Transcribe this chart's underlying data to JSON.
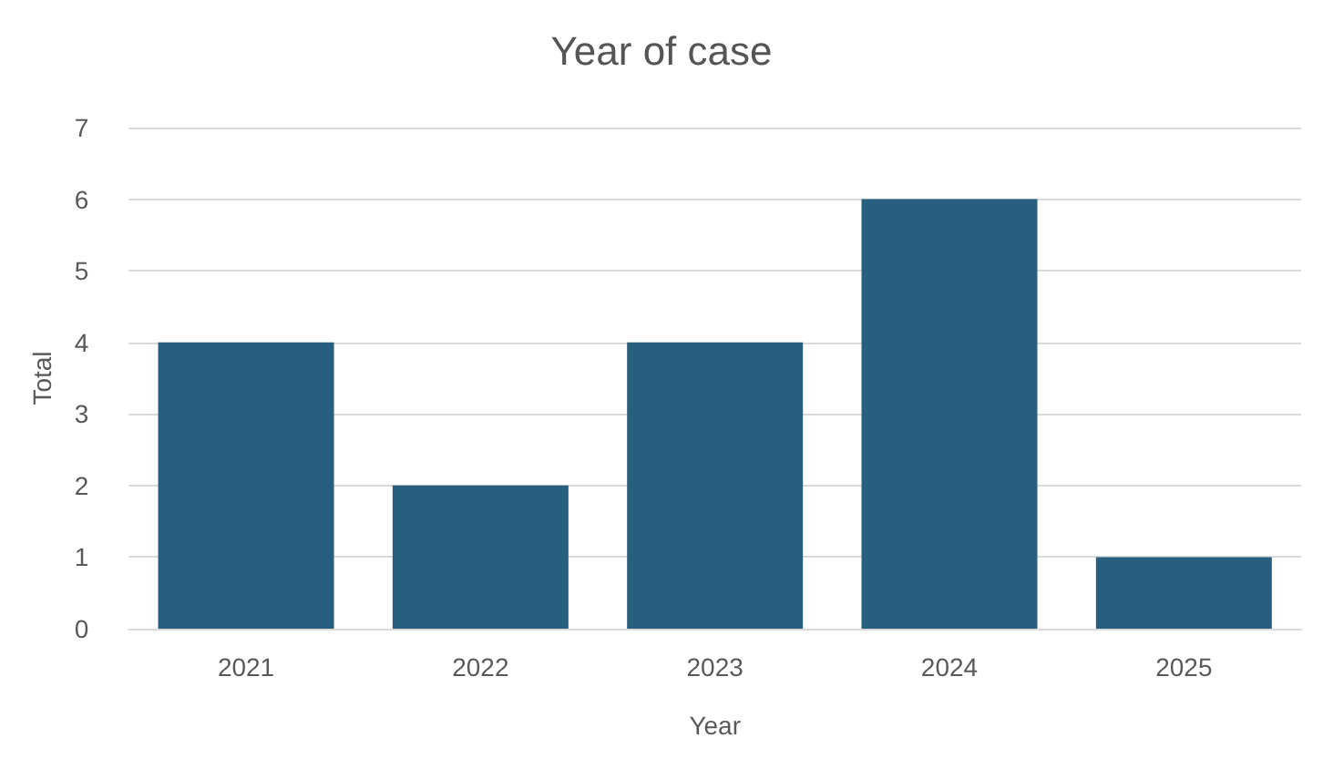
{
  "chart_data": {
    "type": "bar",
    "title": "Year of case",
    "xlabel": "Year",
    "ylabel": "Total",
    "categories": [
      "2021",
      "2022",
      "2023",
      "2024",
      "2025"
    ],
    "values": [
      4,
      2,
      4,
      6,
      1
    ],
    "color": "#285e7e",
    "ylim": [
      0,
      7
    ],
    "yticks": [
      0,
      1,
      2,
      3,
      4,
      5,
      6,
      7
    ],
    "grid": "y"
  }
}
